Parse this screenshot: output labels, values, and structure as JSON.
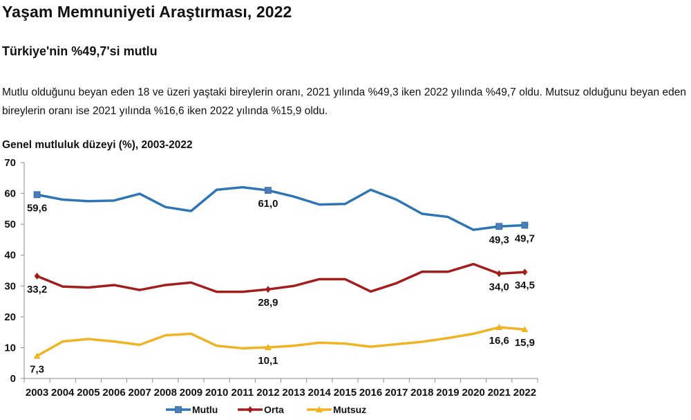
{
  "page": {
    "title": "Yaşam Memnuniyeti Araştırması, 2022",
    "subtitle": "Türkiye'nin %49,7'si mutlu",
    "paragraph": "Mutlu olduğunu beyan eden 18 ve üzeri yaştaki bireylerin oranı, 2021 yılında %49,3 iken 2022 yılında %49,7 oldu. Mutsuz olduğunu beyan eden bireylerin oranı ise 2021 yılında %16,6 iken 2022 yılında %15,9 oldu."
  },
  "chart_data": {
    "type": "line",
    "title": "Genel mutluluk düzeyi (%), 2003-2022",
    "xlabel": "",
    "ylabel": "",
    "ylim": [
      0,
      70
    ],
    "yticks": [
      0,
      10,
      20,
      30,
      40,
      50,
      60,
      70
    ],
    "grid": false,
    "legend_position": "bottom",
    "categories": [
      "2003",
      "2004",
      "2005",
      "2006",
      "2007",
      "2008",
      "2009",
      "2010",
      "2011",
      "2012",
      "2013",
      "2014",
      "2015",
      "2016",
      "2017",
      "2018",
      "2019",
      "2020",
      "2021",
      "2022"
    ],
    "series": [
      {
        "name": "Mutlu",
        "color": "#2e75b6",
        "marker": "square",
        "values": [
          59.6,
          58.0,
          57.5,
          57.7,
          59.9,
          55.6,
          54.3,
          61.2,
          62.0,
          61.0,
          59.0,
          56.4,
          56.6,
          61.2,
          58.0,
          53.4,
          52.4,
          48.2,
          49.3,
          49.7
        ],
        "labels": [
          {
            "index": 0,
            "text": "59,6"
          },
          {
            "index": 9,
            "text": "61,0"
          },
          {
            "index": 18,
            "text": "49,3"
          },
          {
            "index": 19,
            "text": "49,7"
          }
        ]
      },
      {
        "name": "Orta",
        "color": "#a31d1d",
        "marker": "diamond",
        "values": [
          33.2,
          29.8,
          29.5,
          30.3,
          28.7,
          30.3,
          31.1,
          28.1,
          28.1,
          28.9,
          30.0,
          32.2,
          32.2,
          28.2,
          30.9,
          34.6,
          34.6,
          37.1,
          34.0,
          34.5
        ],
        "labels": [
          {
            "index": 0,
            "text": "33,2"
          },
          {
            "index": 9,
            "text": "28,9"
          },
          {
            "index": 18,
            "text": "34,0"
          },
          {
            "index": 19,
            "text": "34,5"
          }
        ]
      },
      {
        "name": "Mutsuz",
        "color": "#f0b323",
        "marker": "triangle",
        "values": [
          7.3,
          12.0,
          12.8,
          12.0,
          10.9,
          14.0,
          14.5,
          10.6,
          9.8,
          10.1,
          10.6,
          11.6,
          11.3,
          10.3,
          11.1,
          11.9,
          13.1,
          14.5,
          16.6,
          15.9
        ],
        "labels": [
          {
            "index": 0,
            "text": "7,3"
          },
          {
            "index": 9,
            "text": "10,1"
          },
          {
            "index": 18,
            "text": "16,6"
          },
          {
            "index": 19,
            "text": "15,9"
          }
        ]
      }
    ]
  }
}
